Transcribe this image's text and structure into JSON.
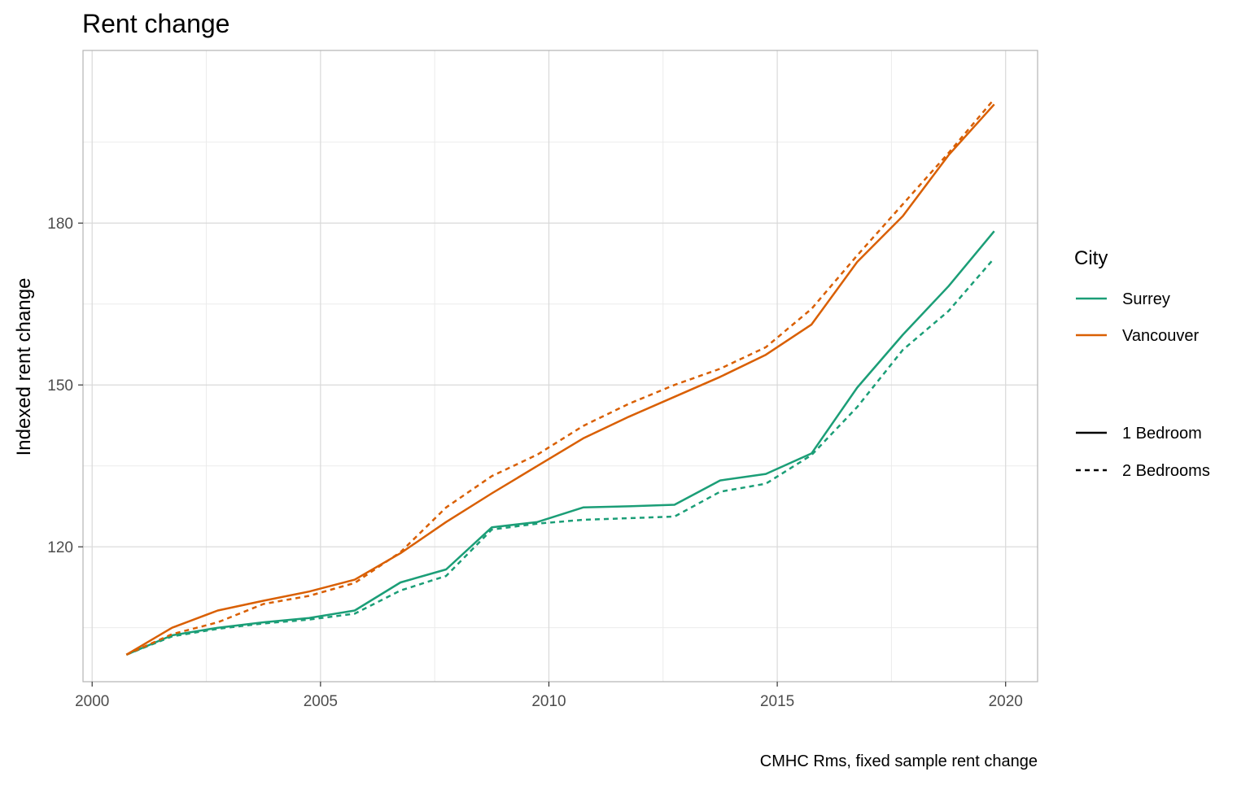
{
  "chart_data": {
    "type": "line",
    "title": "Rent change",
    "xlabel": "",
    "ylabel": "Indexed rent change",
    "caption": "CMHC Rms, fixed sample rent change",
    "xlim": [
      1999.8,
      2020.7
    ],
    "ylim": [
      95,
      212
    ],
    "x_ticks": [
      2000,
      2005,
      2010,
      2015,
      2020
    ],
    "x_tick_labels": [
      "2000",
      "2005",
      "2010",
      "2015",
      "2020"
    ],
    "y_ticks": [
      120,
      150,
      180
    ],
    "y_tick_labels": [
      "120",
      "150",
      "180"
    ],
    "grid": true,
    "legend": {
      "position": "right",
      "color_title": "City",
      "colors": [
        {
          "label": "Surrey",
          "color": "#1b9e77"
        },
        {
          "label": "Vancouver",
          "color": "#d95f02"
        }
      ],
      "linetypes": [
        {
          "label": "1 Bedroom",
          "dash": "solid"
        },
        {
          "label": "2 Bedrooms",
          "dash": "dashed"
        }
      ]
    },
    "series": [
      {
        "name": "Surrey",
        "type_label": "1 Bedroom",
        "color": "#1b9e77",
        "dash": "solid",
        "x": [
          2000.75,
          2001.75,
          2002.75,
          2003.75,
          2004.75,
          2005.75,
          2006.75,
          2007.75,
          2008.75,
          2009.75,
          2010.75,
          2011.75,
          2012.75,
          2013.75,
          2014.75,
          2015.75,
          2016.75,
          2017.75,
          2018.75,
          2019.75
        ],
        "y": [
          100,
          103.6,
          105,
          106,
          106.8,
          108.2,
          113.4,
          115.8,
          123.6,
          124.6,
          127.3,
          127.5,
          127.8,
          132.3,
          133.5,
          137.3,
          149.5,
          159.3,
          168.3,
          178.5
        ]
      },
      {
        "name": "Surrey",
        "type_label": "2 Bedrooms",
        "color": "#1b9e77",
        "dash": "dashed",
        "x": [
          2000.75,
          2001.75,
          2002.75,
          2003.75,
          2004.75,
          2005.75,
          2006.75,
          2007.75,
          2008.75,
          2009.75,
          2010.75,
          2011.75,
          2012.75,
          2013.75,
          2014.75,
          2015.75,
          2016.75,
          2017.75,
          2018.75,
          2019.75
        ],
        "y": [
          100,
          103.4,
          104.8,
          105.8,
          106.5,
          107.6,
          111.9,
          114.6,
          123.2,
          124.3,
          125,
          125.3,
          125.6,
          130.2,
          131.7,
          137,
          145.9,
          156.5,
          163.7,
          173.5
        ]
      },
      {
        "name": "Vancouver",
        "type_label": "1 Bedroom",
        "color": "#d95f02",
        "dash": "solid",
        "x": [
          2000.75,
          2001.75,
          2002.75,
          2003.75,
          2004.75,
          2005.75,
          2006.75,
          2007.75,
          2008.75,
          2009.75,
          2010.75,
          2011.75,
          2012.75,
          2013.75,
          2014.75,
          2015.75,
          2016.75,
          2017.75,
          2018.75,
          2019.75
        ],
        "y": [
          100,
          105,
          108.2,
          110,
          111.7,
          113.9,
          118.8,
          124.6,
          129.9,
          135,
          140.1,
          144.1,
          147.8,
          151.5,
          155.6,
          161.2,
          172.8,
          181.3,
          192.6,
          202
        ]
      },
      {
        "name": "Vancouver",
        "type_label": "2 Bedrooms",
        "color": "#d95f02",
        "dash": "dashed",
        "x": [
          2000.75,
          2001.75,
          2002.75,
          2003.75,
          2004.75,
          2005.75,
          2006.75,
          2007.75,
          2008.75,
          2009.75,
          2010.75,
          2011.75,
          2012.75,
          2013.75,
          2014.75,
          2015.75,
          2016.75,
          2017.75,
          2018.75,
          2019.75
        ],
        "y": [
          100,
          103.8,
          106,
          109.4,
          110.9,
          113.3,
          119,
          127.3,
          133.1,
          137.1,
          142.4,
          146.5,
          150,
          153,
          157,
          164.1,
          174,
          183.5,
          193,
          203
        ]
      }
    ]
  }
}
